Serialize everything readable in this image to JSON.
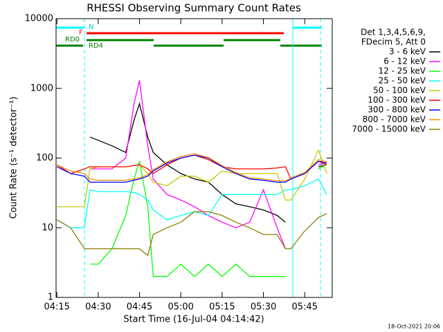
{
  "chart_data": {
    "type": "line",
    "title": "RHESSI Observing Summary Count Rates",
    "xlabel": "Start Time (16-Jul-04 04:14:42)",
    "ylabel": "Count Rate (s⁻¹ detector⁻¹)",
    "timestamp": "18-Oct-2021 20:06",
    "legend_header": [
      "Det 1,3,4,5,6,9,",
      "FDecim 5, Att 0"
    ],
    "flags": [
      "N",
      "F",
      "RD0",
      "RD4"
    ],
    "log_y": true,
    "x": [
      15,
      20,
      25,
      27,
      30,
      35,
      40,
      43,
      45,
      48,
      50,
      55,
      60,
      65,
      70,
      75,
      80,
      85,
      90,
      95,
      98,
      100,
      105,
      110,
      113
    ],
    "xlim": [
      14.7,
      115
    ],
    "xticks": [
      {
        "value": 15,
        "label": "04:15"
      },
      {
        "value": 30,
        "label": "04:30"
      },
      {
        "value": 45,
        "label": "04:45"
      },
      {
        "value": 60,
        "label": "05:00"
      },
      {
        "value": 75,
        "label": "05:15"
      },
      {
        "value": 90,
        "label": "05:30"
      },
      {
        "value": 105,
        "label": "05:45"
      }
    ],
    "ylim": [
      1,
      10000
    ],
    "yticks": [
      1,
      10,
      100,
      1000,
      10000
    ],
    "series": [
      {
        "name": "3 - 6 keV",
        "color": "#000000",
        "values": [
          null,
          null,
          null,
          200,
          180,
          150,
          120,
          350,
          600,
          200,
          120,
          80,
          60,
          50,
          45,
          30,
          22,
          20,
          18,
          15,
          12,
          null,
          null,
          75,
          80
        ]
      },
      {
        "name": "6 - 12 keV",
        "color": "#ff00ff",
        "values": [
          null,
          null,
          null,
          70,
          70,
          70,
          100,
          600,
          1300,
          150,
          50,
          30,
          25,
          20,
          15,
          12,
          10,
          12,
          35,
          10,
          5,
          null,
          null,
          80,
          85
        ]
      },
      {
        "name": "12 - 25 keV",
        "color": "#00ff00",
        "values": [
          null,
          null,
          null,
          3,
          3,
          5,
          15,
          50,
          90,
          20,
          2,
          2,
          3,
          2,
          3,
          2,
          3,
          2,
          2,
          2,
          2,
          null,
          null,
          70,
          80
        ]
      },
      {
        "name": "25 - 50 keV",
        "color": "#00ffff",
        "values": [
          13,
          10,
          10,
          35,
          33,
          33,
          33,
          32,
          30,
          25,
          18,
          13,
          15,
          17,
          15,
          30,
          30,
          30,
          30,
          30,
          35,
          35,
          40,
          50,
          30
        ]
      },
      {
        "name": "50 - 100 keV",
        "color": "#c8c800",
        "values": [
          20,
          20,
          20,
          70,
          75,
          75,
          75,
          78,
          80,
          60,
          45,
          40,
          55,
          55,
          45,
          65,
          60,
          60,
          60,
          60,
          25,
          25,
          50,
          130,
          60
        ]
      },
      {
        "name": "100 - 300 keV",
        "color": "#ff0000",
        "values": [
          80,
          60,
          70,
          75,
          75,
          75,
          75,
          78,
          80,
          70,
          60,
          80,
          100,
          110,
          95,
          75,
          70,
          70,
          70,
          72,
          75,
          50,
          60,
          90,
          80
        ]
      },
      {
        "name": "300 - 800 keV",
        "color": "#0000ff",
        "values": [
          75,
          60,
          55,
          45,
          45,
          45,
          45,
          48,
          50,
          55,
          65,
          85,
          100,
          110,
          100,
          75,
          60,
          50,
          48,
          45,
          45,
          50,
          60,
          90,
          85
        ]
      },
      {
        "name": "800 - 7000 keV",
        "color": "#ff8c00",
        "values": [
          80,
          65,
          60,
          50,
          48,
          48,
          48,
          50,
          52,
          58,
          68,
          88,
          105,
          115,
          102,
          78,
          62,
          52,
          50,
          47,
          47,
          52,
          62,
          95,
          88
        ]
      },
      {
        "name": "7000 - 15000 keV",
        "color": "#8b7d00",
        "values": [
          13,
          10,
          5,
          5,
          5,
          5,
          5,
          5,
          5,
          4,
          8,
          10,
          12,
          17,
          17,
          15,
          12,
          10,
          8,
          8,
          5,
          5,
          9,
          14,
          16
        ]
      }
    ]
  }
}
